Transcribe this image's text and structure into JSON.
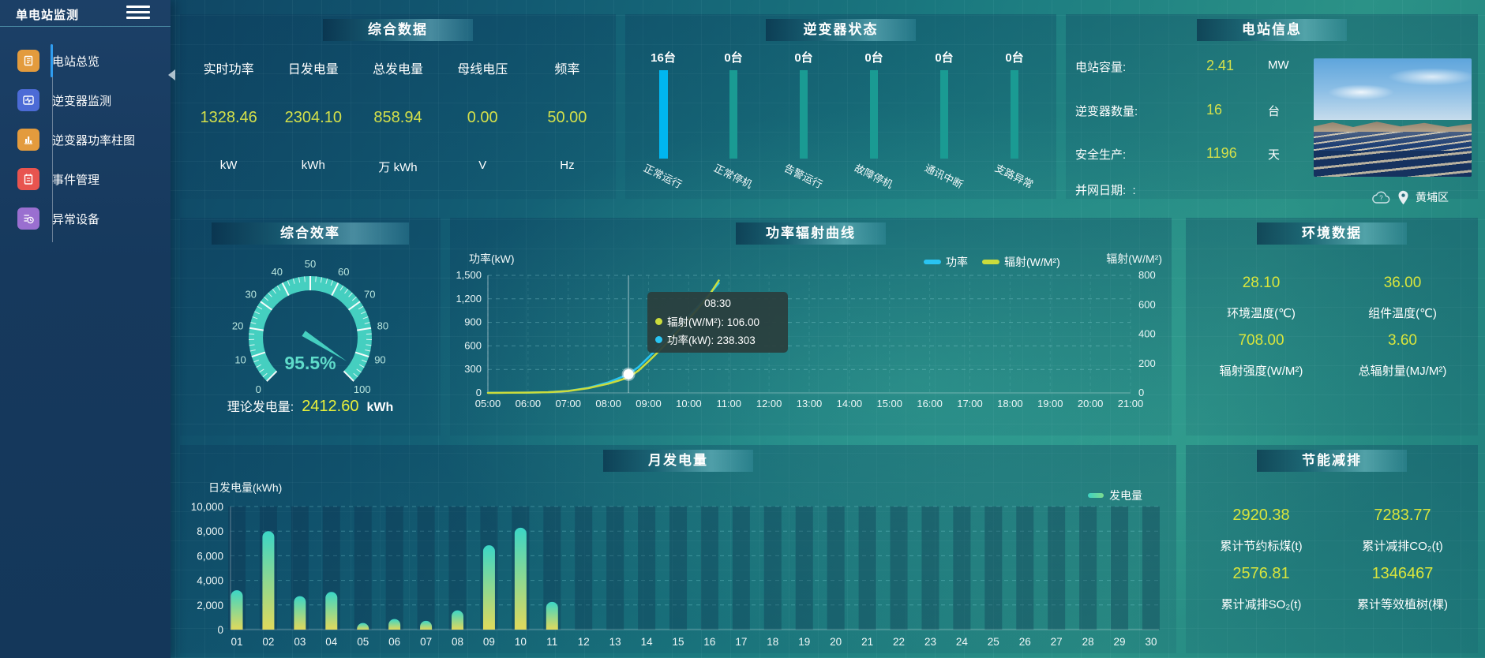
{
  "sidebar": {
    "title": "单电站监测",
    "items": [
      {
        "label": "电站总览",
        "icon": "station-overview-icon",
        "color": "#e39b3d",
        "active": true
      },
      {
        "label": "逆变器监测",
        "icon": "inverter-monitor-icon",
        "color": "#4c6bd6",
        "active": false
      },
      {
        "label": "逆变器功率柱图",
        "icon": "inverter-power-bars-icon",
        "color": "#e39b3d",
        "active": false
      },
      {
        "label": "事件管理",
        "icon": "event-management-icon",
        "color": "#e8544f",
        "active": false
      },
      {
        "label": "异常设备",
        "icon": "abnormal-device-icon",
        "color": "#9a6fd0",
        "active": false
      }
    ]
  },
  "overview": {
    "title": "综合数据",
    "metrics": [
      {
        "label": "实时功率",
        "value": "1328.46",
        "unit": "kW"
      },
      {
        "label": "日发电量",
        "value": "2304.10",
        "unit": "kWh"
      },
      {
        "label": "总发电量",
        "value": "858.94",
        "unit": "万 kWh"
      },
      {
        "label": "母线电压",
        "value": "0.00",
        "unit": "V"
      },
      {
        "label": "频率",
        "value": "50.00",
        "unit": "Hz"
      }
    ]
  },
  "inverter_status": {
    "title": "逆变器状态"
  },
  "station": {
    "title": "电站信息",
    "rows": [
      {
        "label": "电站容量:",
        "value": "2.41",
        "unit": "MW"
      },
      {
        "label": "逆变器数量:",
        "value": "16",
        "unit": "台"
      },
      {
        "label": "安全生产:",
        "value": "1196",
        "unit": "天"
      },
      {
        "label": "并网日期:  :",
        "value": "",
        "unit": ""
      }
    ],
    "location": "黄埔区"
  },
  "efficiency": {
    "title": "综合效率",
    "value_label": "95.5%",
    "theory_label": "理论发电量:",
    "theory_value": "2412.60",
    "theory_unit": "kWh"
  },
  "curve": {
    "title": "功率辐射曲线",
    "y_left_label": "功率(kW)",
    "y_right_label": "辐射(W/M²)",
    "legend": [
      {
        "name": "功率",
        "color": "#29c4f2"
      },
      {
        "name": "辐射(W/M²)",
        "color": "#cbdc3c"
      }
    ],
    "tooltip": {
      "time": "08:30",
      "lines": [
        {
          "color": "#cbdc3c",
          "text": "辐射(W/M²): 106.00"
        },
        {
          "color": "#29c4f2",
          "text": "功率(kW): 238.303"
        }
      ]
    }
  },
  "env": {
    "title": "环境数据",
    "metrics": [
      {
        "value": "28.10",
        "label": "环境温度(℃)"
      },
      {
        "value": "36.00",
        "label": "组件温度(℃)"
      },
      {
        "value": "708.00",
        "label": "辐射强度(W/M²)"
      },
      {
        "value": "3.60",
        "label": "总辐射量(MJ/M²)"
      }
    ]
  },
  "month": {
    "title": "月发电量",
    "ylabel": "日发电量(kWh)",
    "legend": "发电量"
  },
  "saving": {
    "title": "节能减排",
    "metrics": [
      {
        "value": "2920.38",
        "label": "累计节约标煤(t)"
      },
      {
        "value": "7283.77",
        "label": "累计减排CO₂(t)"
      },
      {
        "value": "2576.81",
        "label": "累计减排SO₂(t)"
      },
      {
        "value": "1346467",
        "label": "累计等效植树(棵)"
      }
    ]
  },
  "chart_data": [
    {
      "id": "inverter_status",
      "type": "bar",
      "title": "逆变器状态",
      "categories": [
        "正常运行",
        "正常停机",
        "告警运行",
        "故障停机",
        "通讯中断",
        "支路异常"
      ],
      "values": [
        16,
        0,
        0,
        0,
        0,
        0
      ],
      "value_labels": [
        "16台",
        "0台",
        "0台",
        "0台",
        "0台",
        "0台"
      ],
      "bar_colors": [
        "#00b6f0",
        "#1a9b93",
        "#1a9b93",
        "#1a9b93",
        "#1a9b93",
        "#1a9b93"
      ]
    },
    {
      "id": "efficiency_gauge",
      "type": "gauge",
      "title": "综合效率",
      "min": 0,
      "max": 100,
      "value": 95.5,
      "tick_labels": [
        "0",
        "10",
        "20",
        "30",
        "40",
        "50",
        "60",
        "70",
        "80",
        "90",
        "100"
      ],
      "ring_color": "#45cfc0",
      "needle_color": "#45cfc0"
    },
    {
      "id": "power_radiation",
      "type": "line",
      "title": "功率辐射曲线",
      "x_ticks": [
        "05:00",
        "06:00",
        "07:00",
        "08:00",
        "09:00",
        "10:00",
        "11:00",
        "12:00",
        "13:00",
        "14:00",
        "15:00",
        "16:00",
        "17:00",
        "18:00",
        "19:00",
        "20:00",
        "21:00"
      ],
      "x_range_hours": [
        5,
        21
      ],
      "y_left": {
        "label": "功率(kW)",
        "ticks": [
          "0",
          "300",
          "600",
          "900",
          "1,200",
          "1,500"
        ],
        "max": 1500
      },
      "y_right": {
        "label": "辐射(W/M²)",
        "ticks": [
          "0",
          "200",
          "400",
          "600",
          "800"
        ],
        "max": 800
      },
      "series": [
        {
          "name": "功率",
          "color": "#29c4f2",
          "axis": "left",
          "points": [
            [
              5,
              2
            ],
            [
              5.5,
              2
            ],
            [
              6,
              4
            ],
            [
              6.5,
              9
            ],
            [
              7,
              25
            ],
            [
              7.5,
              65
            ],
            [
              8,
              135
            ],
            [
              8.25,
              185
            ],
            [
              8.5,
              238.303
            ],
            [
              8.75,
              330
            ],
            [
              9,
              455
            ],
            [
              9.25,
              580
            ],
            [
              9.5,
              710
            ],
            [
              9.75,
              845
            ],
            [
              10,
              980
            ],
            [
              10.25,
              1115
            ],
            [
              10.5,
              1250
            ],
            [
              10.75,
              1400
            ]
          ]
        },
        {
          "name": "辐射(W/M²)",
          "color": "#cbdc3c",
          "axis": "right",
          "points": [
            [
              5,
              0
            ],
            [
              5.5,
              1
            ],
            [
              6,
              2
            ],
            [
              6.5,
              5
            ],
            [
              7,
              13
            ],
            [
              7.5,
              32
            ],
            [
              8,
              63
            ],
            [
              8.25,
              83
            ],
            [
              8.5,
              106
            ],
            [
              8.75,
              152
            ],
            [
              9,
              215
            ],
            [
              9.25,
              282
            ],
            [
              9.5,
              352
            ],
            [
              9.75,
              425
            ],
            [
              10,
              502
            ],
            [
              10.25,
              580
            ],
            [
              10.5,
              660
            ],
            [
              10.75,
              765
            ]
          ]
        }
      ],
      "crosshair_hour": 8.5,
      "highlight_point": {
        "hour": 8.5,
        "power": 238.303,
        "radiation": 106
      }
    },
    {
      "id": "monthly_generation",
      "type": "bar",
      "title": "月发电量",
      "ylabel": "日发电量(kWh)",
      "legend": "发电量",
      "categories": [
        "01",
        "02",
        "03",
        "04",
        "05",
        "06",
        "07",
        "08",
        "09",
        "10",
        "11",
        "12",
        "13",
        "14",
        "15",
        "16",
        "17",
        "18",
        "19",
        "20",
        "21",
        "22",
        "23",
        "24",
        "25",
        "26",
        "27",
        "28",
        "29",
        "30"
      ],
      "values": [
        3200,
        8000,
        2720,
        3060,
        540,
        860,
        710,
        1560,
        6850,
        8280,
        2250,
        0,
        0,
        0,
        0,
        0,
        0,
        0,
        0,
        0,
        0,
        0,
        0,
        0,
        0,
        0,
        0,
        0,
        0,
        0
      ],
      "y_ticks": [
        "0",
        "2,000",
        "4,000",
        "6,000",
        "8,000",
        "10,000"
      ],
      "ymax": 10000
    }
  ]
}
